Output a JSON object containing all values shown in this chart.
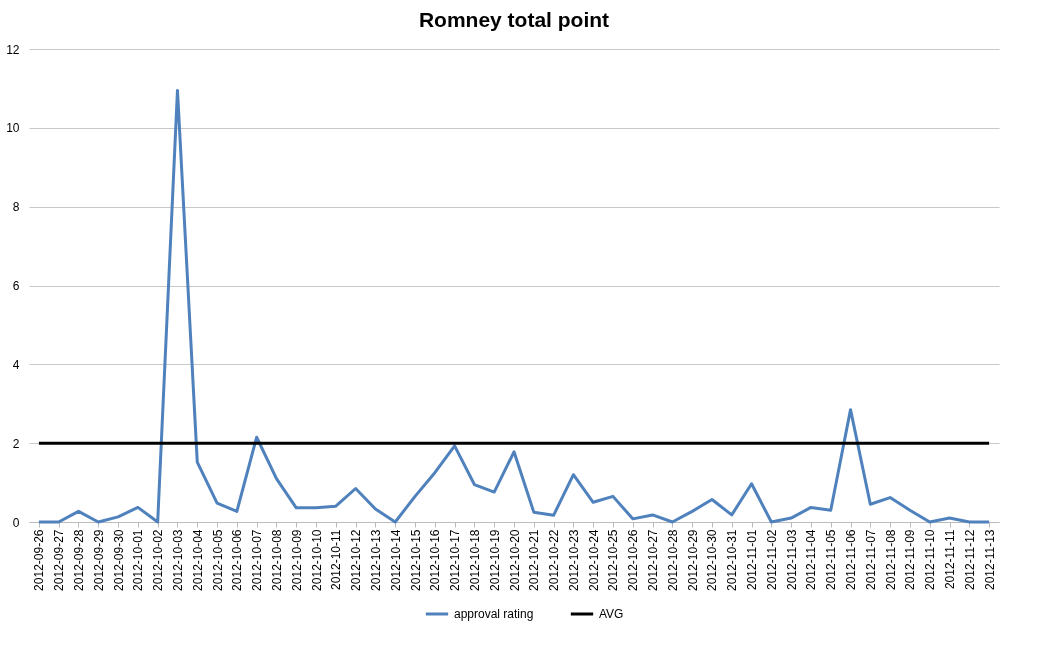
{
  "chart_data": {
    "type": "line",
    "title": "Romney total point",
    "categories": [
      "2012-09-26",
      "2012-09-27",
      "2012-09-28",
      "2012-09-29",
      "2012-09-30",
      "2012-10-01",
      "2012-10-02",
      "2012-10-03",
      "2012-10-04",
      "2012-10-05",
      "2012-10-06",
      "2012-10-07",
      "2012-10-08",
      "2012-10-09",
      "2012-10-10",
      "2012-10-11",
      "2012-10-12",
      "2012-10-13",
      "2012-10-14",
      "2012-10-15",
      "2012-10-16",
      "2012-10-17",
      "2012-10-18",
      "2012-10-19",
      "2012-10-20",
      "2012-10-21",
      "2012-10-22",
      "2012-10-23",
      "2012-10-24",
      "2012-10-25",
      "2012-10-26",
      "2012-10-27",
      "2012-10-28",
      "2012-10-29",
      "2012-10-30",
      "2012-10-31",
      "2012-11-01",
      "2012-11-02",
      "2012-11-03",
      "2012-11-04",
      "2012-11-05",
      "2012-11-06",
      "2012-11-07",
      "2012-11-08",
      "2012-11-09",
      "2012-11-10",
      "2012-11-11",
      "2012-11-12",
      "2012-11-13"
    ],
    "series": [
      {
        "name": "approval rating",
        "color": "#4f81bd",
        "values": [
          0,
          0,
          0.27,
          0,
          0.13,
          0.37,
          0,
          10.95,
          1.52,
          0.48,
          0.27,
          2.15,
          1.1,
          0.36,
          0.36,
          0.4,
          0.85,
          0.33,
          0,
          0.65,
          1.25,
          1.93,
          0.95,
          0.76,
          1.78,
          0.25,
          0.17,
          1.2,
          0.5,
          0.65,
          0.08,
          0.18,
          0,
          0.27,
          0.57,
          0.18,
          0.97,
          0,
          0.1,
          0.37,
          0.3,
          2.85,
          0.45,
          0.62,
          0.3,
          0,
          0.1,
          0,
          0
        ]
      },
      {
        "name": "AVG",
        "color": "#000000",
        "values": [
          2,
          2,
          2,
          2,
          2,
          2,
          2,
          2,
          2,
          2,
          2,
          2,
          2,
          2,
          2,
          2,
          2,
          2,
          2,
          2,
          2,
          2,
          2,
          2,
          2,
          2,
          2,
          2,
          2,
          2,
          2,
          2,
          2,
          2,
          2,
          2,
          2,
          2,
          2,
          2,
          2,
          2,
          2,
          2,
          2,
          2,
          2,
          2,
          2
        ]
      }
    ],
    "ylim": [
      0,
      12
    ],
    "yticks": [
      0,
      2,
      4,
      6,
      8,
      10,
      12
    ],
    "grid": "y",
    "legend": "bottom",
    "marker": "none",
    "line_style": "solid"
  }
}
